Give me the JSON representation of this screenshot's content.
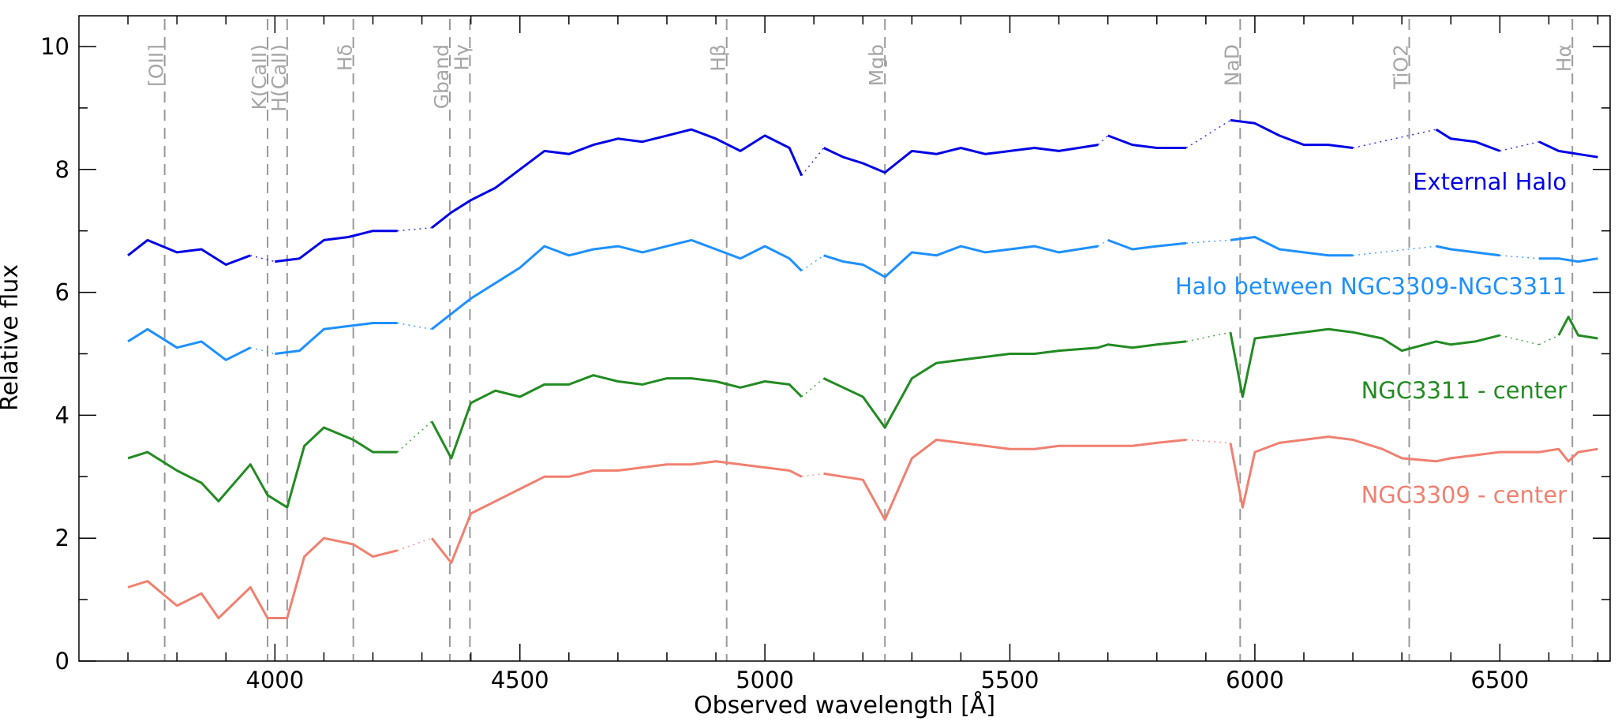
{
  "chart_data": {
    "type": "line",
    "xlabel": "Observed wavelength [Å]",
    "ylabel": "Relative flux",
    "xlim": [
      3600,
      6725
    ],
    "ylim": [
      0,
      10.5
    ],
    "x_ticks": [
      4000,
      4500,
      5000,
      5500,
      6000,
      6500
    ],
    "y_ticks": [
      0,
      2,
      4,
      6,
      8,
      10
    ],
    "grid": false,
    "spectral_lines": [
      {
        "label": "[OII]",
        "x": 3775
      },
      {
        "label": "K(CaII)",
        "x": 3985
      },
      {
        "label": "H(CaII)",
        "x": 4025
      },
      {
        "label": "Hδ",
        "x": 4160
      },
      {
        "label": "Gband",
        "x": 4357
      },
      {
        "label": "Hγ",
        "x": 4398
      },
      {
        "label": "Hβ",
        "x": 4922
      },
      {
        "label": "Mgb",
        "x": 5245
      },
      {
        "label": "NaD",
        "x": 5970
      },
      {
        "label": "TiO2",
        "x": 6315
      },
      {
        "label": "Hα",
        "x": 6648
      }
    ],
    "series": [
      {
        "name": "External Halo",
        "color": "#0000e6",
        "label_y": 7.8,
        "x": [
          3700,
          3740,
          3800,
          3850,
          3900,
          3950,
          4000,
          4050,
          4100,
          4150,
          4200,
          4250,
          4320,
          4360,
          4400,
          4450,
          4500,
          4550,
          4600,
          4650,
          4700,
          4750,
          4800,
          4850,
          4900,
          4950,
          5000,
          5050,
          5075,
          5120,
          5160,
          5200,
          5245,
          5300,
          5350,
          5400,
          5450,
          5500,
          5550,
          5600,
          5680,
          5700,
          5750,
          5800,
          5860,
          5950,
          6000,
          6050,
          6100,
          6150,
          6200,
          6370,
          6400,
          6450,
          6500,
          6580,
          6620,
          6660,
          6700
        ],
        "y": [
          6.6,
          6.85,
          6.65,
          6.7,
          6.45,
          6.6,
          6.5,
          6.55,
          6.85,
          6.9,
          7.0,
          7.0,
          7.05,
          7.3,
          7.5,
          7.7,
          8.0,
          8.3,
          8.25,
          8.4,
          8.5,
          8.45,
          8.55,
          8.65,
          8.5,
          8.3,
          8.55,
          8.35,
          7.9,
          8.35,
          8.2,
          8.1,
          7.95,
          8.3,
          8.25,
          8.35,
          8.25,
          8.3,
          8.35,
          8.3,
          8.4,
          8.55,
          8.4,
          8.35,
          8.35,
          8.8,
          8.75,
          8.55,
          8.4,
          8.4,
          8.35,
          8.65,
          8.5,
          8.45,
          8.3,
          8.45,
          8.3,
          8.25,
          8.2
        ],
        "gaps_after": [
          3950,
          4250,
          5075,
          5680,
          5860,
          6200,
          6500
        ]
      },
      {
        "name": "Halo between NGC3309-NGC3311",
        "color": "#1e90ff",
        "label_y": 6.1,
        "x": [
          3700,
          3740,
          3800,
          3850,
          3900,
          3950,
          4000,
          4050,
          4100,
          4150,
          4200,
          4250,
          4320,
          4360,
          4400,
          4450,
          4500,
          4550,
          4600,
          4650,
          4700,
          4750,
          4800,
          4850,
          4900,
          4950,
          5000,
          5050,
          5075,
          5120,
          5160,
          5200,
          5245,
          5300,
          5350,
          5400,
          5450,
          5500,
          5550,
          5600,
          5680,
          5700,
          5750,
          5800,
          5860,
          5950,
          6000,
          6050,
          6100,
          6150,
          6200,
          6370,
          6400,
          6450,
          6500,
          6580,
          6620,
          6660,
          6700
        ],
        "y": [
          5.2,
          5.4,
          5.1,
          5.2,
          4.9,
          5.1,
          5.0,
          5.05,
          5.4,
          5.45,
          5.5,
          5.5,
          5.4,
          5.65,
          5.9,
          6.15,
          6.4,
          6.75,
          6.6,
          6.7,
          6.75,
          6.65,
          6.75,
          6.85,
          6.7,
          6.55,
          6.75,
          6.55,
          6.35,
          6.6,
          6.5,
          6.45,
          6.25,
          6.65,
          6.6,
          6.75,
          6.65,
          6.7,
          6.75,
          6.65,
          6.75,
          6.85,
          6.7,
          6.75,
          6.8,
          6.85,
          6.9,
          6.7,
          6.65,
          6.6,
          6.6,
          6.75,
          6.7,
          6.65,
          6.6,
          6.55,
          6.55,
          6.5,
          6.55
        ],
        "gaps_after": [
          3950,
          4250,
          5075,
          5680,
          5860,
          6200,
          6500
        ]
      },
      {
        "name": "NGC3311 - center",
        "color": "#228b22",
        "label_y": 4.4,
        "x": [
          3700,
          3740,
          3800,
          3850,
          3885,
          3950,
          3985,
          4025,
          4060,
          4100,
          4160,
          4200,
          4250,
          4320,
          4360,
          4400,
          4450,
          4500,
          4550,
          4600,
          4650,
          4700,
          4750,
          4800,
          4850,
          4900,
          4950,
          5000,
          5050,
          5075,
          5120,
          5160,
          5200,
          5245,
          5300,
          5350,
          5400,
          5450,
          5500,
          5550,
          5600,
          5680,
          5700,
          5750,
          5800,
          5860,
          5950,
          5975,
          6000,
          6050,
          6100,
          6150,
          6200,
          6260,
          6300,
          6370,
          6400,
          6450,
          6500,
          6580,
          6620,
          6640,
          6660,
          6700
        ],
        "y": [
          3.3,
          3.4,
          3.1,
          2.9,
          2.6,
          3.2,
          2.7,
          2.5,
          3.5,
          3.8,
          3.6,
          3.4,
          3.4,
          3.9,
          3.3,
          4.2,
          4.4,
          4.3,
          4.5,
          4.5,
          4.65,
          4.55,
          4.5,
          4.6,
          4.6,
          4.55,
          4.45,
          4.55,
          4.5,
          4.3,
          4.6,
          4.45,
          4.3,
          3.8,
          4.6,
          4.85,
          4.9,
          4.95,
          5.0,
          5.0,
          5.05,
          5.1,
          5.15,
          5.1,
          5.15,
          5.2,
          5.35,
          4.3,
          5.25,
          5.3,
          5.35,
          5.4,
          5.35,
          5.25,
          5.05,
          5.2,
          5.15,
          5.2,
          5.3,
          5.15,
          5.3,
          5.6,
          5.3,
          5.25
        ],
        "gaps_after": [
          4250,
          5075,
          5860,
          6500,
          6580
        ]
      },
      {
        "name": "NGC3309 - center",
        "color": "#f08070",
        "label_y": 2.7,
        "x": [
          3700,
          3740,
          3800,
          3850,
          3885,
          3950,
          3985,
          4025,
          4060,
          4100,
          4160,
          4200,
          4250,
          4320,
          4360,
          4400,
          4450,
          4500,
          4550,
          4600,
          4650,
          4700,
          4750,
          4800,
          4850,
          4900,
          4950,
          5000,
          5050,
          5075,
          5120,
          5160,
          5200,
          5245,
          5300,
          5350,
          5400,
          5450,
          5500,
          5550,
          5600,
          5680,
          5700,
          5750,
          5800,
          5860,
          5950,
          5975,
          6000,
          6050,
          6100,
          6150,
          6200,
          6260,
          6300,
          6370,
          6400,
          6450,
          6500,
          6580,
          6620,
          6640,
          6660,
          6700
        ],
        "y": [
          1.2,
          1.3,
          0.9,
          1.1,
          0.7,
          1.2,
          0.7,
          0.7,
          1.7,
          2.0,
          1.9,
          1.7,
          1.8,
          2.0,
          1.6,
          2.4,
          2.6,
          2.8,
          3.0,
          3.0,
          3.1,
          3.1,
          3.15,
          3.2,
          3.2,
          3.25,
          3.2,
          3.15,
          3.1,
          3.0,
          3.05,
          3.0,
          2.95,
          2.3,
          3.3,
          3.6,
          3.55,
          3.5,
          3.45,
          3.45,
          3.5,
          3.5,
          3.5,
          3.5,
          3.55,
          3.6,
          3.55,
          2.5,
          3.4,
          3.55,
          3.6,
          3.65,
          3.6,
          3.45,
          3.3,
          3.25,
          3.3,
          3.35,
          3.4,
          3.4,
          3.45,
          3.25,
          3.4,
          3.45
        ],
        "gaps_after": [
          4250,
          5075,
          5860
        ]
      }
    ]
  }
}
